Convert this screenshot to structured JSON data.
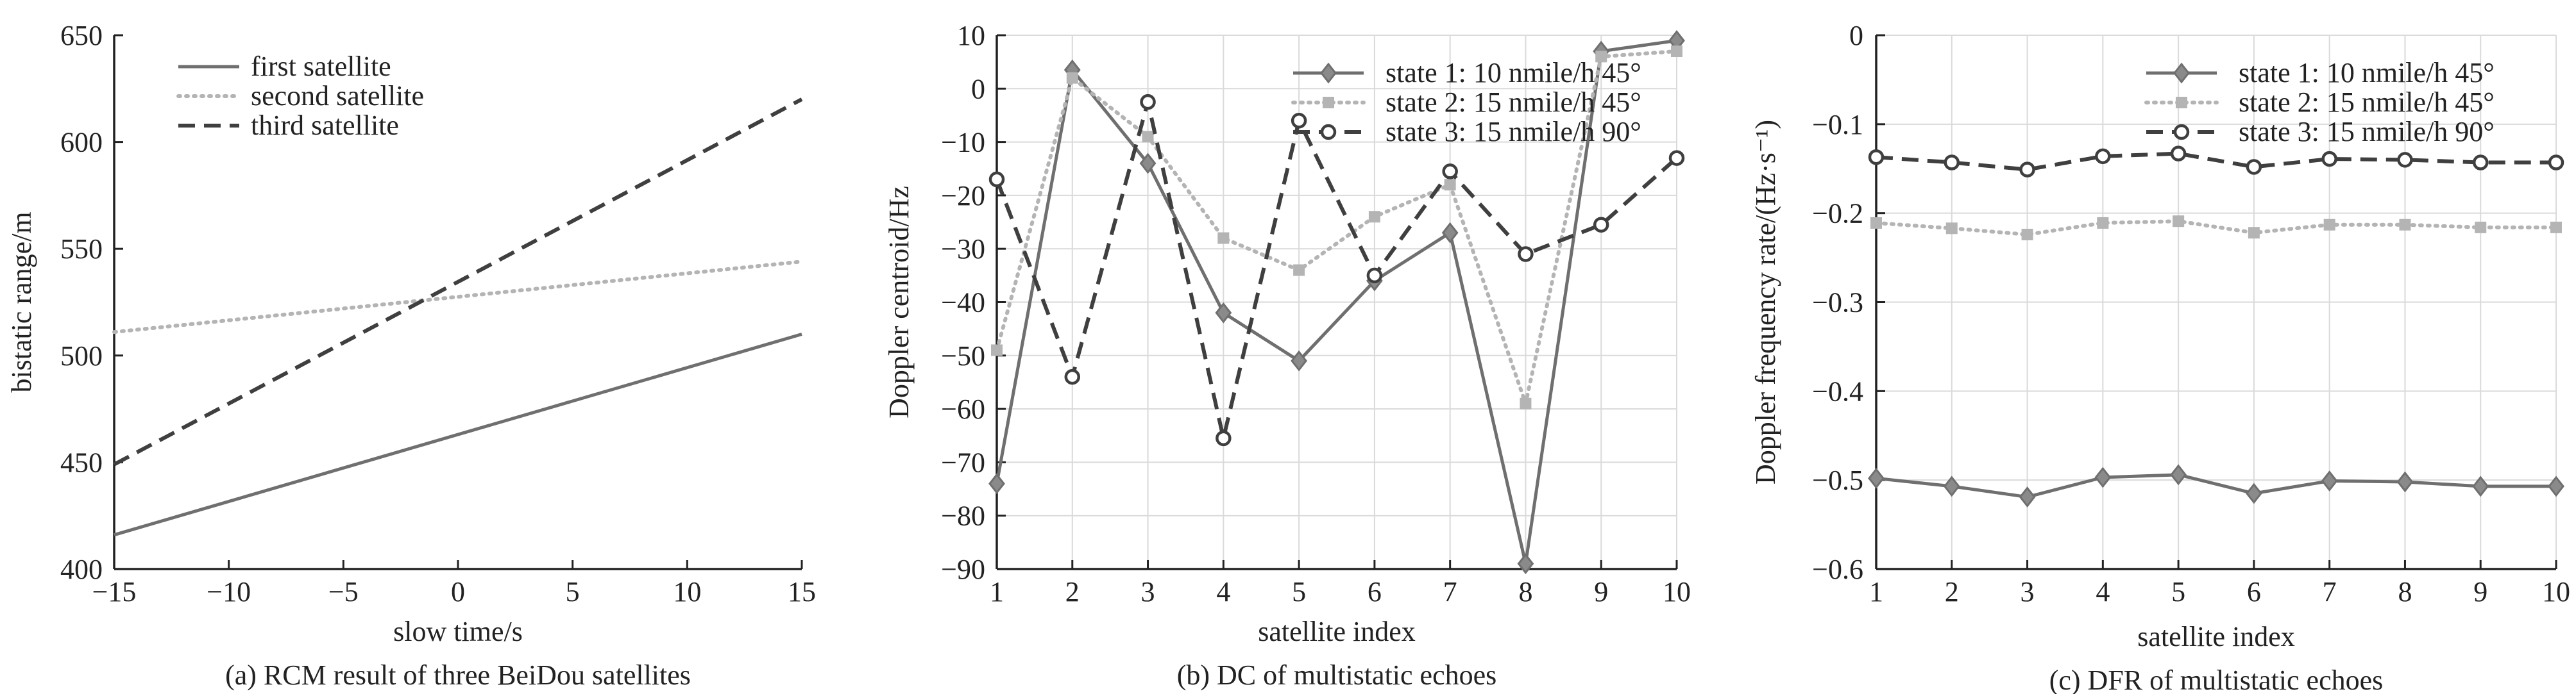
{
  "chart_data": [
    {
      "type": "line",
      "panel_caption": "(a) RCM result of three BeiDou satellites",
      "xlabel": "slow time/s",
      "ylabel": "bistatic range/m",
      "xlim": [
        -15,
        15
      ],
      "ylim": [
        400,
        650
      ],
      "xticks": [
        -15,
        -10,
        -5,
        0,
        5,
        10,
        15
      ],
      "yticks": [
        400,
        450,
        500,
        550,
        600,
        650
      ],
      "x_tick_labels": [
        "−15",
        "−10",
        "−5",
        "0",
        "5",
        "10",
        "15"
      ],
      "y_tick_labels": [
        "400",
        "450",
        "500",
        "550",
        "600",
        "650"
      ],
      "grid": false,
      "legend": "top-left",
      "series": [
        {
          "name": "first satellite",
          "style": "solid",
          "color": "#6f6f6f",
          "x": [
            -15,
            15
          ],
          "y": [
            416,
            510
          ]
        },
        {
          "name": "second satellite",
          "style": "dotted",
          "color": "#b4b4b4",
          "x": [
            -15,
            15
          ],
          "y": [
            511,
            544
          ]
        },
        {
          "name": "third satellite",
          "style": "dashed",
          "color": "#3f3f3f",
          "x": [
            -15,
            15
          ],
          "y": [
            449,
            620
          ]
        }
      ]
    },
    {
      "type": "line",
      "panel_caption": "(b) DC of multistatic echoes",
      "xlabel": "satellite index",
      "ylabel": "Doppler centroid/Hz",
      "xlim": [
        1,
        10
      ],
      "ylim": [
        -90,
        10
      ],
      "xticks": [
        1,
        2,
        3,
        4,
        5,
        6,
        7,
        8,
        9,
        10
      ],
      "yticks": [
        -90,
        -80,
        -70,
        -60,
        -50,
        -40,
        -30,
        -20,
        -10,
        0,
        10
      ],
      "x_tick_labels": [
        "1",
        "2",
        "3",
        "4",
        "5",
        "6",
        "7",
        "8",
        "9",
        "10"
      ],
      "y_tick_labels": [
        "−90",
        "−80",
        "−70",
        "−60",
        "−50",
        "−40",
        "−30",
        "−20",
        "−10",
        "0",
        "10"
      ],
      "grid": true,
      "legend": "top-right",
      "x": [
        1,
        2,
        3,
        4,
        5,
        6,
        7,
        8,
        9,
        10
      ],
      "series": [
        {
          "name": "state 1: 10 nmile/h 45°",
          "style": "solid",
          "marker": "diamond",
          "color": "#6f6f6f",
          "values": [
            -74,
            3.5,
            -14,
            -42,
            -51,
            -36,
            -27,
            -89,
            7,
            9
          ]
        },
        {
          "name": "state 2: 15 nmile/h 45°",
          "style": "dotted",
          "marker": "square",
          "color": "#b4b4b4",
          "values": [
            -49,
            2,
            -9,
            -28,
            -34,
            -24,
            -18,
            -59,
            6,
            7
          ]
        },
        {
          "name": "state 3: 15 nmile/h 90°",
          "style": "dashed",
          "marker": "circle",
          "color": "#3f3f3f",
          "values": [
            -17,
            -54,
            -2.5,
            -65.5,
            -6,
            -35,
            -15.5,
            -31,
            -25.5,
            -13
          ]
        }
      ]
    },
    {
      "type": "line",
      "panel_caption": "(c) DFR of multistatic echoes",
      "xlabel": "satellite index",
      "ylabel": "Doppler frequency rate/(Hz·s⁻¹)",
      "xlim": [
        1,
        10
      ],
      "ylim": [
        -0.6,
        0
      ],
      "xticks": [
        1,
        2,
        3,
        4,
        5,
        6,
        7,
        8,
        9,
        10
      ],
      "yticks": [
        -0.6,
        -0.5,
        -0.4,
        -0.3,
        -0.2,
        -0.1,
        0
      ],
      "x_tick_labels": [
        "1",
        "2",
        "3",
        "4",
        "5",
        "6",
        "7",
        "8",
        "9",
        "10"
      ],
      "y_tick_labels": [
        "−0.6",
        "−0.5",
        "−0.4",
        "−0.3",
        "−0.2",
        "−0.1",
        "0"
      ],
      "grid": true,
      "legend": "top-right",
      "x": [
        1,
        2,
        3,
        4,
        5,
        6,
        7,
        8,
        9,
        10
      ],
      "series": [
        {
          "name": "state 1:  10 nmile/h 45°",
          "style": "solid",
          "marker": "diamond",
          "color": "#6f6f6f",
          "values": [
            -0.498,
            -0.507,
            -0.519,
            -0.497,
            -0.494,
            -0.515,
            -0.501,
            -0.502,
            -0.507,
            -0.507
          ]
        },
        {
          "name": "state 2:  15 nmile/h 45°",
          "style": "dotted",
          "marker": "square",
          "color": "#b4b4b4",
          "values": [
            -0.211,
            -0.217,
            -0.224,
            -0.211,
            -0.209,
            -0.222,
            -0.213,
            -0.213,
            -0.216,
            -0.216
          ]
        },
        {
          "name": "state 3:  15 nmile/h 90°",
          "style": "dashed",
          "marker": "circle",
          "color": "#3f3f3f",
          "values": [
            -0.137,
            -0.143,
            -0.151,
            -0.136,
            -0.133,
            -0.148,
            -0.139,
            -0.14,
            -0.143,
            -0.143
          ]
        }
      ]
    }
  ]
}
